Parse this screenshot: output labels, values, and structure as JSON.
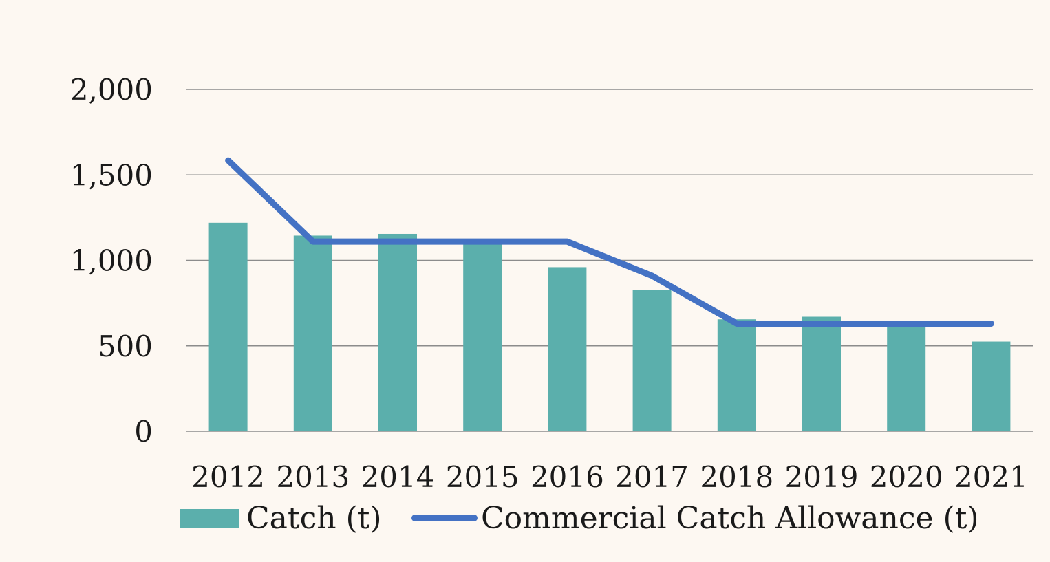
{
  "chart_data": {
    "type": "bar",
    "categories": [
      "2012",
      "2013",
      "2014",
      "2015",
      "2016",
      "2017",
      "2018",
      "2019",
      "2020",
      "2021"
    ],
    "series": [
      {
        "name": "Catch (t)",
        "type": "bar",
        "color": "#5bafac",
        "values": [
          1220,
          1145,
          1155,
          1100,
          960,
          825,
          655,
          670,
          625,
          525
        ]
      },
      {
        "name": "Commercial Catch Allowance (t)",
        "type": "line",
        "color": "#4472c4",
        "values": [
          1585,
          1110,
          1110,
          1110,
          1110,
          910,
          630,
          630,
          630,
          630
        ]
      }
    ],
    "yticks": [
      "0",
      "500",
      "1,000",
      "1,500",
      "2,000"
    ],
    "ytick_values": [
      0,
      500,
      1000,
      1500,
      2000
    ],
    "ylim": [
      0,
      2000
    ],
    "grid": true,
    "legend_position": "bottom"
  }
}
